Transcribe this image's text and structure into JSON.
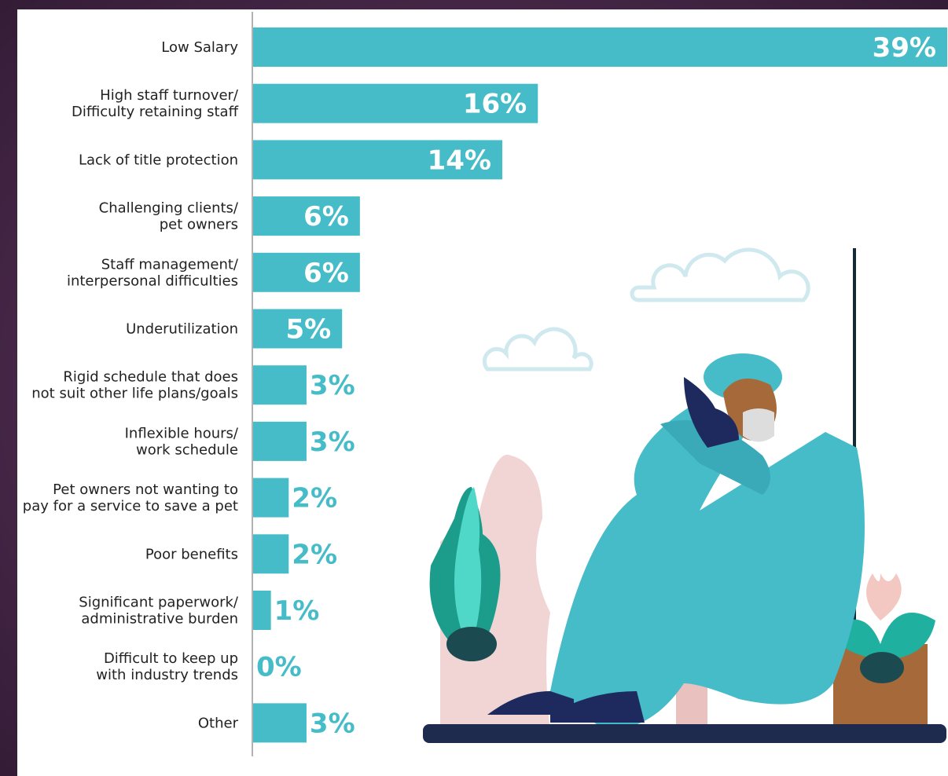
{
  "chart_data": {
    "type": "bar",
    "orientation": "horizontal",
    "categories": [
      [
        "Low Salary"
      ],
      [
        "High staff turnover/",
        "Difficulty retaining staff"
      ],
      [
        "Lack of title protection"
      ],
      [
        "Challenging clients/",
        "pet owners"
      ],
      [
        "Staff management/",
        "interpersonal difficulties"
      ],
      [
        "Underutilization"
      ],
      [
        "Rigid schedule that does",
        "not suit other life plans/goals"
      ],
      [
        "Inflexible hours/",
        "work schedule"
      ],
      [
        "Pet owners not wanting to",
        "pay for a service to save a pet"
      ],
      [
        "Poor benefits"
      ],
      [
        "Significant paperwork/",
        "administrative burden"
      ],
      [
        "Difficult to keep up",
        "with industry trends"
      ],
      [
        "Other"
      ]
    ],
    "values": [
      39,
      16,
      14,
      6,
      6,
      5,
      3,
      3,
      2,
      2,
      1,
      0,
      3
    ],
    "value_labels": [
      "39%",
      "16%",
      "14%",
      "6%",
      "6%",
      "5%",
      "3%",
      "3%",
      "2%",
      "2%",
      "1%",
      "0%",
      "3%"
    ],
    "color": "#45bcc8"
  }
}
